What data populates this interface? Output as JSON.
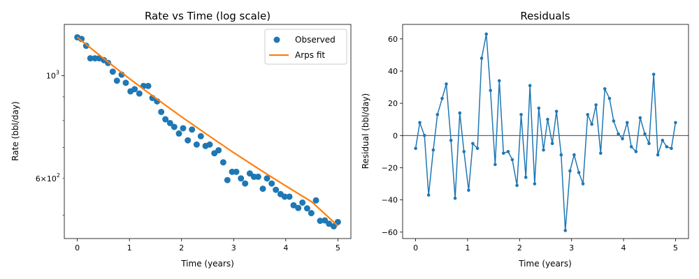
{
  "colors": {
    "observed": "#1f77b4",
    "fit": "#ff7f0e",
    "residual": "#1f77b4",
    "axis": "#000000",
    "zero_line": "#000000"
  },
  "chart_data": [
    {
      "type": "scatter",
      "title": "Rate vs Time (log scale)",
      "xlabel": "Time (years)",
      "ylabel": "Rate (bbl/day)",
      "yscale": "log",
      "xlim": [
        -0.25,
        5.25
      ],
      "ylim": [
        445,
        1290
      ],
      "xticks": [
        0,
        1,
        2,
        3,
        4,
        5
      ],
      "xtick_labels": [
        "0",
        "1",
        "2",
        "3",
        "4",
        "5"
      ],
      "yticks_major": [
        1000
      ],
      "ytick_major_labels": [
        "10^3"
      ],
      "yticks_minor": [
        500,
        600,
        700,
        800,
        900
      ],
      "ytick_minor_labels": [
        "",
        "6×10^2",
        "",
        "",
        ""
      ],
      "legend": {
        "position": "top-right",
        "entries": [
          "Observed",
          "Arps fit"
        ]
      },
      "series": [
        {
          "name": "Observed",
          "style": "markers",
          "x": [
            0.0,
            0.08,
            0.17,
            0.25,
            0.34,
            0.42,
            0.51,
            0.59,
            0.68,
            0.76,
            0.85,
            0.93,
            1.02,
            1.1,
            1.19,
            1.27,
            1.36,
            1.44,
            1.53,
            1.61,
            1.69,
            1.78,
            1.86,
            1.95,
            2.03,
            2.12,
            2.2,
            2.29,
            2.37,
            2.46,
            2.54,
            2.63,
            2.71,
            2.8,
            2.88,
            2.97,
            3.05,
            3.14,
            3.22,
            3.31,
            3.39,
            3.47,
            3.56,
            3.64,
            3.73,
            3.81,
            3.9,
            3.98,
            4.07,
            4.15,
            4.24,
            4.32,
            4.41,
            4.49,
            4.58,
            4.66,
            4.75,
            4.83,
            4.92,
            5.0
          ],
          "y": [
            1210,
            1200,
            1160,
            1090,
            1090,
            1090,
            1080,
            1065,
            1020,
            975,
            1005,
            965,
            925,
            935,
            915,
            950,
            950,
            895,
            880,
            835,
            805,
            790,
            775,
            750,
            770,
            725,
            765,
            710,
            740,
            705,
            710,
            680,
            690,
            650,
            595,
            620,
            620,
            600,
            585,
            615,
            605,
            605,
            570,
            600,
            585,
            567,
            555,
            548,
            548,
            525,
            518,
            532,
            517,
            505,
            538,
            486,
            487,
            479,
            473,
            483
          ]
        },
        {
          "name": "Arps fit",
          "style": "line",
          "x": [
            0,
            0.5,
            1,
            1.5,
            2,
            2.5,
            3,
            3.5,
            4,
            4.5,
            5
          ],
          "y": [
            1210,
            1090,
            985,
            895,
            815,
            745,
            682,
            627,
            578,
            534,
            474
          ]
        }
      ]
    },
    {
      "type": "line",
      "title": "Residuals",
      "xlabel": "Time (years)",
      "ylabel": "Residual (bbl/day)",
      "xlim": [
        -0.25,
        5.25
      ],
      "ylim": [
        -64,
        69
      ],
      "xticks": [
        0,
        1,
        2,
        3,
        4,
        5
      ],
      "xtick_labels": [
        "0",
        "1",
        "2",
        "3",
        "4",
        "5"
      ],
      "yticks": [
        -60,
        -40,
        -20,
        0,
        20,
        40,
        60
      ],
      "ytick_labels": [
        "−60",
        "−40",
        "−20",
        "0",
        "20",
        "40",
        "60"
      ],
      "zero_line": true,
      "series": [
        {
          "style": "line+markers",
          "x": [
            0.0,
            0.08,
            0.17,
            0.25,
            0.34,
            0.42,
            0.51,
            0.59,
            0.68,
            0.76,
            0.85,
            0.93,
            1.02,
            1.1,
            1.19,
            1.27,
            1.36,
            1.44,
            1.53,
            1.61,
            1.69,
            1.78,
            1.86,
            1.95,
            2.03,
            2.12,
            2.2,
            2.29,
            2.37,
            2.46,
            2.54,
            2.63,
            2.71,
            2.8,
            2.88,
            2.97,
            3.05,
            3.14,
            3.22,
            3.31,
            3.39,
            3.47,
            3.56,
            3.64,
            3.73,
            3.81,
            3.9,
            3.98,
            4.07,
            4.15,
            4.24,
            4.32,
            4.41,
            4.49,
            4.58,
            4.66,
            4.75,
            4.83,
            4.92,
            5.0
          ],
          "y": [
            -8,
            8,
            0,
            -37,
            -9,
            13,
            23,
            32,
            -3,
            -39,
            14,
            -10,
            -34,
            -5,
            -8,
            48,
            63,
            28,
            -18,
            34,
            -11,
            -10,
            -15,
            -31,
            13,
            -26,
            31,
            -30,
            17,
            -9,
            10,
            -5,
            15,
            -12,
            -59,
            -22,
            -12,
            -23,
            -30,
            13,
            7,
            19,
            -11,
            29,
            23,
            9,
            1,
            -2,
            8,
            -7,
            -10,
            11,
            1,
            -5,
            38,
            -12,
            -3,
            -7,
            -8,
            8
          ]
        }
      ]
    }
  ]
}
